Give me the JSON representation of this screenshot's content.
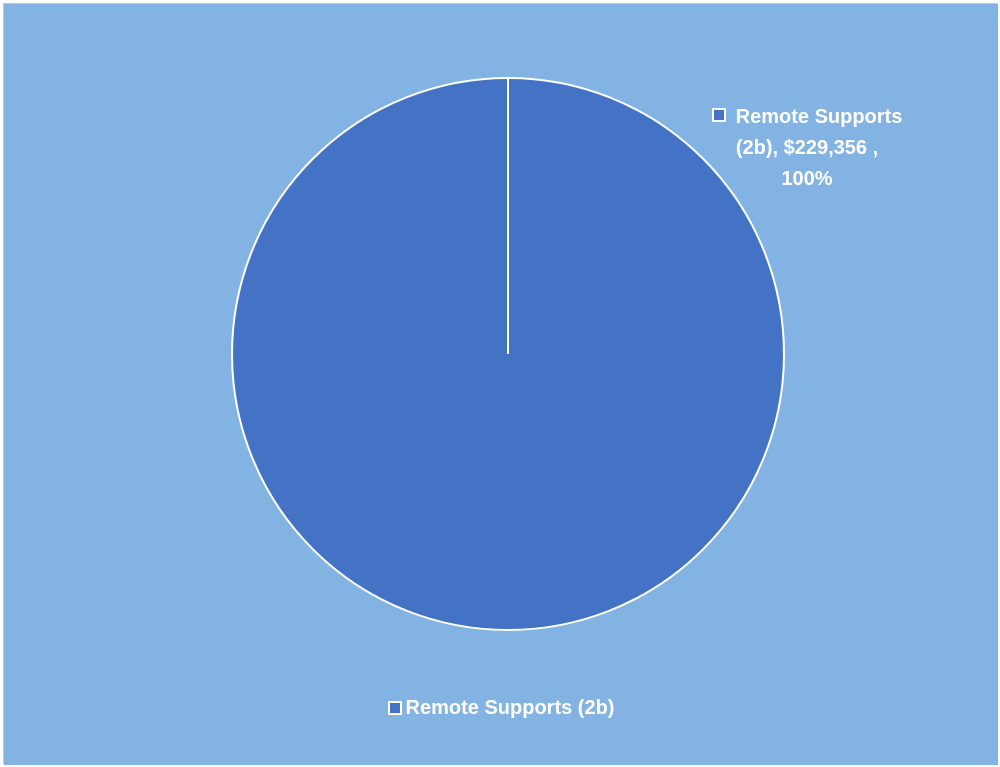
{
  "chart_data": {
    "type": "pie",
    "categories": [
      "Remote Supports (2b)"
    ],
    "values": [
      229356
    ],
    "percentages": [
      100
    ],
    "data_labels": [
      {
        "line1": "Remote Supports",
        "line2": "(2b),  $229,356 ,",
        "line3": "100%"
      }
    ],
    "legend": {
      "entries": [
        "Remote Supports (2b)"
      ],
      "position": "bottom"
    },
    "colors": {
      "background": "#83B3E3",
      "slice": "#4472C4",
      "slice_border": "#ffffff"
    }
  }
}
